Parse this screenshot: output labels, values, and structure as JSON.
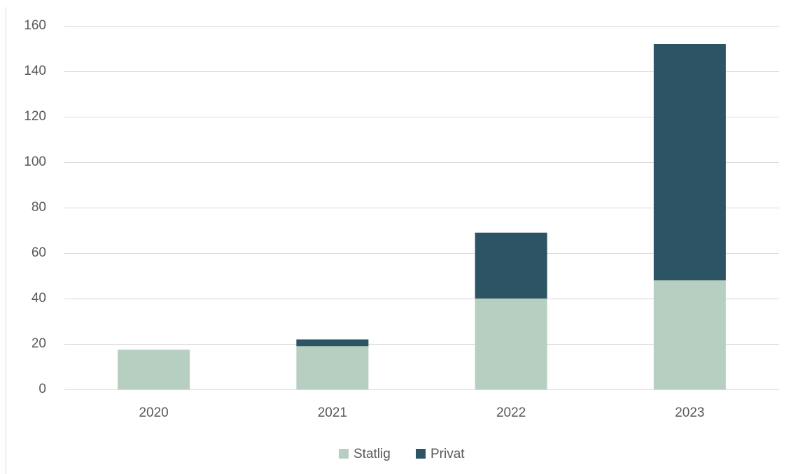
{
  "chart_data": {
    "type": "stacked_bar",
    "categories": [
      "2020",
      "2021",
      "2022",
      "2023"
    ],
    "series": [
      {
        "name": "Statlig",
        "color": "#b6cfc0",
        "values": [
          17.5,
          19,
          40,
          48
        ]
      },
      {
        "name": "Privat",
        "color": "#2c5464",
        "values": [
          0,
          3,
          29,
          104
        ]
      }
    ],
    "ylim": [
      0,
      160
    ],
    "yticks": [
      0,
      20,
      40,
      60,
      80,
      100,
      120,
      140,
      160
    ],
    "grid": true,
    "legend": "bottom"
  }
}
